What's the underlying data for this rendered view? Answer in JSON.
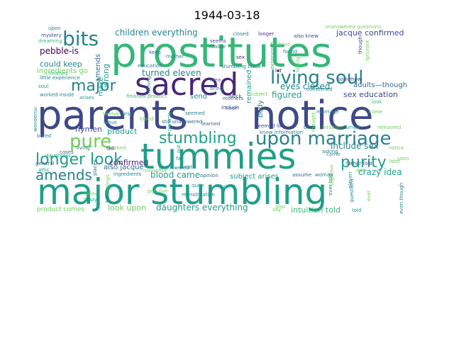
{
  "chart_data": {
    "type": "wordcloud",
    "title": "1944-03-18",
    "colormap": [
      "#440154",
      "#482878",
      "#3e4989",
      "#31688e",
      "#26828e",
      "#1f9e89",
      "#35b779",
      "#6ece58",
      "#b5de2b",
      "#fde725"
    ],
    "words": [
      {
        "text": "prostitutes",
        "weight": 1.0
      },
      {
        "text": "parents",
        "weight": 0.98
      },
      {
        "text": "notice",
        "weight": 0.98
      },
      {
        "text": "major stumbling",
        "weight": 0.95
      },
      {
        "text": "tummies",
        "weight": 0.93
      },
      {
        "text": "sacred",
        "weight": 0.8
      },
      {
        "text": "living soul",
        "weight": 0.55
      },
      {
        "text": "bits",
        "weight": 0.55
      },
      {
        "text": "upon marriage",
        "weight": 0.5
      },
      {
        "text": "pure",
        "weight": 0.5
      },
      {
        "text": "major",
        "weight": 0.45
      },
      {
        "text": "stumbling",
        "weight": 0.45
      },
      {
        "text": "purity",
        "weight": 0.45
      },
      {
        "text": "longer look",
        "weight": 0.42
      },
      {
        "text": "amends",
        "weight": 0.4
      },
      {
        "text": "children everything",
        "weight": 0.22
      },
      {
        "text": "jacque confirmed",
        "weight": 0.2
      },
      {
        "text": "pebble-is",
        "weight": 0.2
      },
      {
        "text": "could keep",
        "weight": 0.18
      },
      {
        "text": "turned eleven",
        "weight": 0.18
      },
      {
        "text": "eyes closed",
        "weight": 0.2
      },
      {
        "text": "figured",
        "weight": 0.2
      },
      {
        "text": "sex education",
        "weight": 0.18
      },
      {
        "text": "include sex",
        "weight": 0.2
      },
      {
        "text": "hymen",
        "weight": 0.18
      },
      {
        "text": "product",
        "weight": 0.17
      },
      {
        "text": "confirmed",
        "weight": 0.17
      },
      {
        "text": "crazy idea",
        "weight": 0.18
      },
      {
        "text": "blood came",
        "weight": 0.18
      },
      {
        "text": "subject arises",
        "weight": 0.15
      },
      {
        "text": "daughters everything",
        "weight": 0.2
      },
      {
        "text": "look upon",
        "weight": 0.18
      },
      {
        "text": "intuition told",
        "weight": 0.2
      },
      {
        "text": "product comes",
        "weight": 0.14
      },
      {
        "text": "also jacque",
        "weight": 0.15
      },
      {
        "text": "wrong",
        "weight": 0.16
      },
      {
        "text": "make",
        "weight": 0.16
      },
      {
        "text": "amends",
        "weight": 0.14
      },
      {
        "text": "ingredients go",
        "weight": 0.14
      },
      {
        "text": "adults—though",
        "weight": 0.15
      },
      {
        "text": "remained",
        "weight": 0.14
      },
      {
        "text": "body",
        "weight": 0.14
      },
      {
        "text": "send",
        "weight": 0.14
      },
      {
        "text": "unanswered questions",
        "weight": 0.1
      },
      {
        "text": "closed",
        "weight": 0.1
      },
      {
        "text": "longer",
        "weight": 0.1
      },
      {
        "text": "also knew",
        "weight": 0.1
      },
      {
        "text": "upon",
        "weight": 0.09
      },
      {
        "text": "mystery",
        "weight": 0.09
      },
      {
        "text": "dreaming",
        "weight": 0.09
      },
      {
        "text": "finished",
        "weight": 0.09
      },
      {
        "text": "little experience",
        "weight": 0.09
      },
      {
        "text": "soul",
        "weight": 0.09
      },
      {
        "text": "worked inside",
        "weight": 0.09
      },
      {
        "text": "arises",
        "weight": 0.09
      },
      {
        "text": "finished product",
        "weight": 0.09
      },
      {
        "text": "education",
        "weight": 0.09
      },
      {
        "text": "mother",
        "weight": 0.09
      },
      {
        "text": "stumbling block",
        "weight": 0.09
      },
      {
        "text": "sex",
        "weight": 0.09
      },
      {
        "text": "found",
        "weight": 0.09
      },
      {
        "text": "realise",
        "weight": 0.09
      },
      {
        "text": "seems",
        "weight": 0.09
      },
      {
        "text": "keep",
        "weight": 0.09
      },
      {
        "text": "afraid",
        "weight": 0.09
      },
      {
        "text": "lot",
        "weight": 0.09
      },
      {
        "text": "idea",
        "weight": 0.09
      },
      {
        "text": "bring",
        "weight": 0.09
      },
      {
        "text": "experience",
        "weight": 0.09
      },
      {
        "text": "concerned",
        "weight": 0.09
      },
      {
        "text": "block",
        "weight": 0.09
      },
      {
        "text": "subject",
        "weight": 0.09
      },
      {
        "text": "telling",
        "weight": 0.09
      },
      {
        "text": "wonderful",
        "weight": 0.09
      },
      {
        "text": "twelve",
        "weight": 0.09
      },
      {
        "text": "leave",
        "weight": 0.09
      },
      {
        "text": "parents",
        "weight": 0.09
      },
      {
        "text": "seemed",
        "weight": 0.09
      },
      {
        "text": "mothers",
        "weight": 0.09
      },
      {
        "text": "hear",
        "weight": 0.09
      },
      {
        "text": "include",
        "weight": 0.09
      },
      {
        "text": "marriage",
        "weight": 0.09
      },
      {
        "text": "look",
        "weight": 0.09
      },
      {
        "text": "come",
        "weight": 0.09
      },
      {
        "text": "bored",
        "weight": 0.09
      },
      {
        "text": "daughters",
        "weight": 0.09
      },
      {
        "text": "cases",
        "weight": 0.09
      },
      {
        "text": "living",
        "weight": 0.09
      },
      {
        "text": "worked",
        "weight": 0.09
      },
      {
        "text": "first",
        "weight": 0.09
      },
      {
        "text": "blood",
        "weight": 0.09
      },
      {
        "text": "still unanswered",
        "weight": 0.09
      },
      {
        "text": "seemed like",
        "weight": 0.09
      },
      {
        "text": "book",
        "weight": 0.09
      },
      {
        "text": "intuition",
        "weight": 0.09
      },
      {
        "text": "turned",
        "weight": 0.09
      },
      {
        "text": "remained",
        "weight": 0.09
      },
      {
        "text": "know information",
        "weight": 0.09
      },
      {
        "text": "asking",
        "weight": 0.09
      },
      {
        "text": "came",
        "weight": 0.09
      },
      {
        "text": "notice",
        "weight": 0.09
      },
      {
        "text": "general",
        "weight": 0.09
      },
      {
        "text": "tell",
        "weight": 0.09
      },
      {
        "text": "peculiar",
        "weight": 0.09
      },
      {
        "text": "half",
        "weight": 0.09
      },
      {
        "text": "assume",
        "weight": 0.09
      },
      {
        "text": "woman",
        "weight": 0.09
      },
      {
        "text": "father told",
        "weight": 0.09
      },
      {
        "text": "soon",
        "weight": 0.09
      },
      {
        "text": "later",
        "weight": 0.09
      },
      {
        "text": "opinion",
        "weight": 0.09
      },
      {
        "text": "learned",
        "weight": 0.09
      },
      {
        "text": "far",
        "weight": 0.09
      },
      {
        "text": "put",
        "weight": 0.09
      },
      {
        "text": "menstruation",
        "weight": 0.09
      },
      {
        "text": "nonsense",
        "weight": 0.09
      },
      {
        "text": "eat",
        "weight": 0.09
      },
      {
        "text": "unanswered",
        "weight": 0.09
      },
      {
        "text": "quite",
        "weight": 0.09
      },
      {
        "text": "crazy",
        "weight": 0.09
      },
      {
        "text": "room",
        "weight": 0.09
      },
      {
        "text": "ever told",
        "weight": 0.09
      },
      {
        "text": "questions",
        "weight": 0.09
      },
      {
        "text": "ever",
        "weight": 0.09
      },
      {
        "text": "even though",
        "weight": 0.09
      },
      {
        "text": "told",
        "weight": 0.09
      },
      {
        "text": "also",
        "weight": 0.09
      },
      {
        "text": "ingredients",
        "weight": 0.09
      },
      {
        "text": "eleven",
        "weight": 0.09
      },
      {
        "text": "thought",
        "weight": 0.09
      },
      {
        "text": "ignorant",
        "weight": 0.09
      },
      {
        "text": "though",
        "weight": 0.09
      },
      {
        "text": "nothing",
        "weight": 0.09
      },
      {
        "text": "somehow",
        "weight": 0.09
      },
      {
        "text": "attic",
        "weight": 0.09
      },
      {
        "text": "feelings",
        "weight": 0.09
      },
      {
        "text": "places",
        "weight": 0.09
      },
      {
        "text": "hardly",
        "weight": 0.09
      },
      {
        "text": "age",
        "weight": 0.09
      },
      {
        "text": "together",
        "weight": 0.09
      },
      {
        "text": "say",
        "weight": 0.09
      }
    ]
  }
}
